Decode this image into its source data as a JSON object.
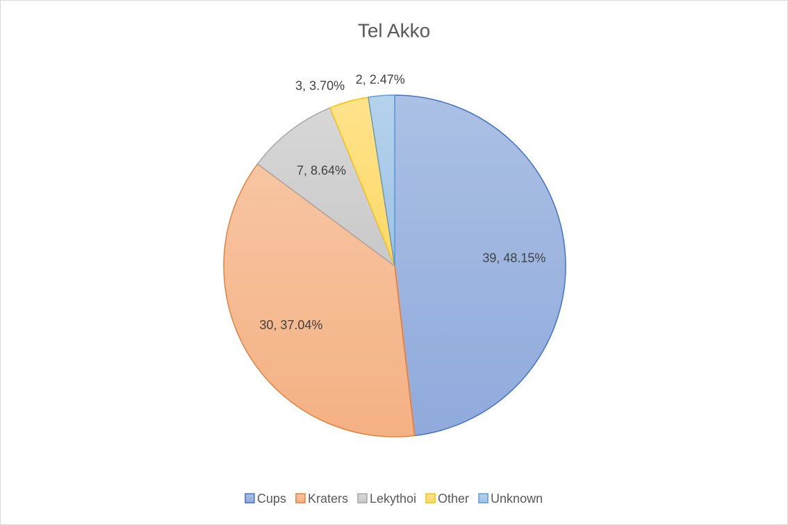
{
  "chart_data": {
    "type": "pie",
    "title": "Tel Akko",
    "categories": [
      "Cups",
      "Kraters",
      "Lekythoi",
      "Other",
      "Unknown"
    ],
    "values": [
      39,
      30,
      7,
      3,
      2
    ],
    "value_labels": [
      "39, 48.15%",
      "30, 37.04%",
      "7, 8.64%",
      "3, 3.70%",
      "2, 2.47%"
    ],
    "colors": [
      "#4472c4",
      "#ed7d31",
      "#a5a5a5",
      "#ffc000",
      "#5b9bd5"
    ],
    "legend": "bottom"
  }
}
